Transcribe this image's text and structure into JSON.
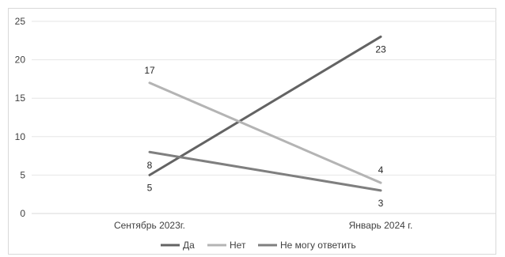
{
  "chart_data": {
    "type": "line",
    "title": "",
    "xlabel": "",
    "ylabel": "",
    "categories": [
      "Сентябрь 2023г.",
      "Январь 2024 г."
    ],
    "ylim": [
      0,
      25
    ],
    "yticks": [
      0,
      5,
      10,
      15,
      20,
      25
    ],
    "grid": true,
    "legend_position": "bottom",
    "series": [
      {
        "name": "Да",
        "values": [
          5,
          23
        ],
        "color": "#636363"
      },
      {
        "name": "Нет",
        "values": [
          17,
          4
        ],
        "color": "#b4b4b4"
      },
      {
        "name": "Не могу ответить",
        "values": [
          8,
          3
        ],
        "color": "#7f7f7f"
      }
    ]
  }
}
